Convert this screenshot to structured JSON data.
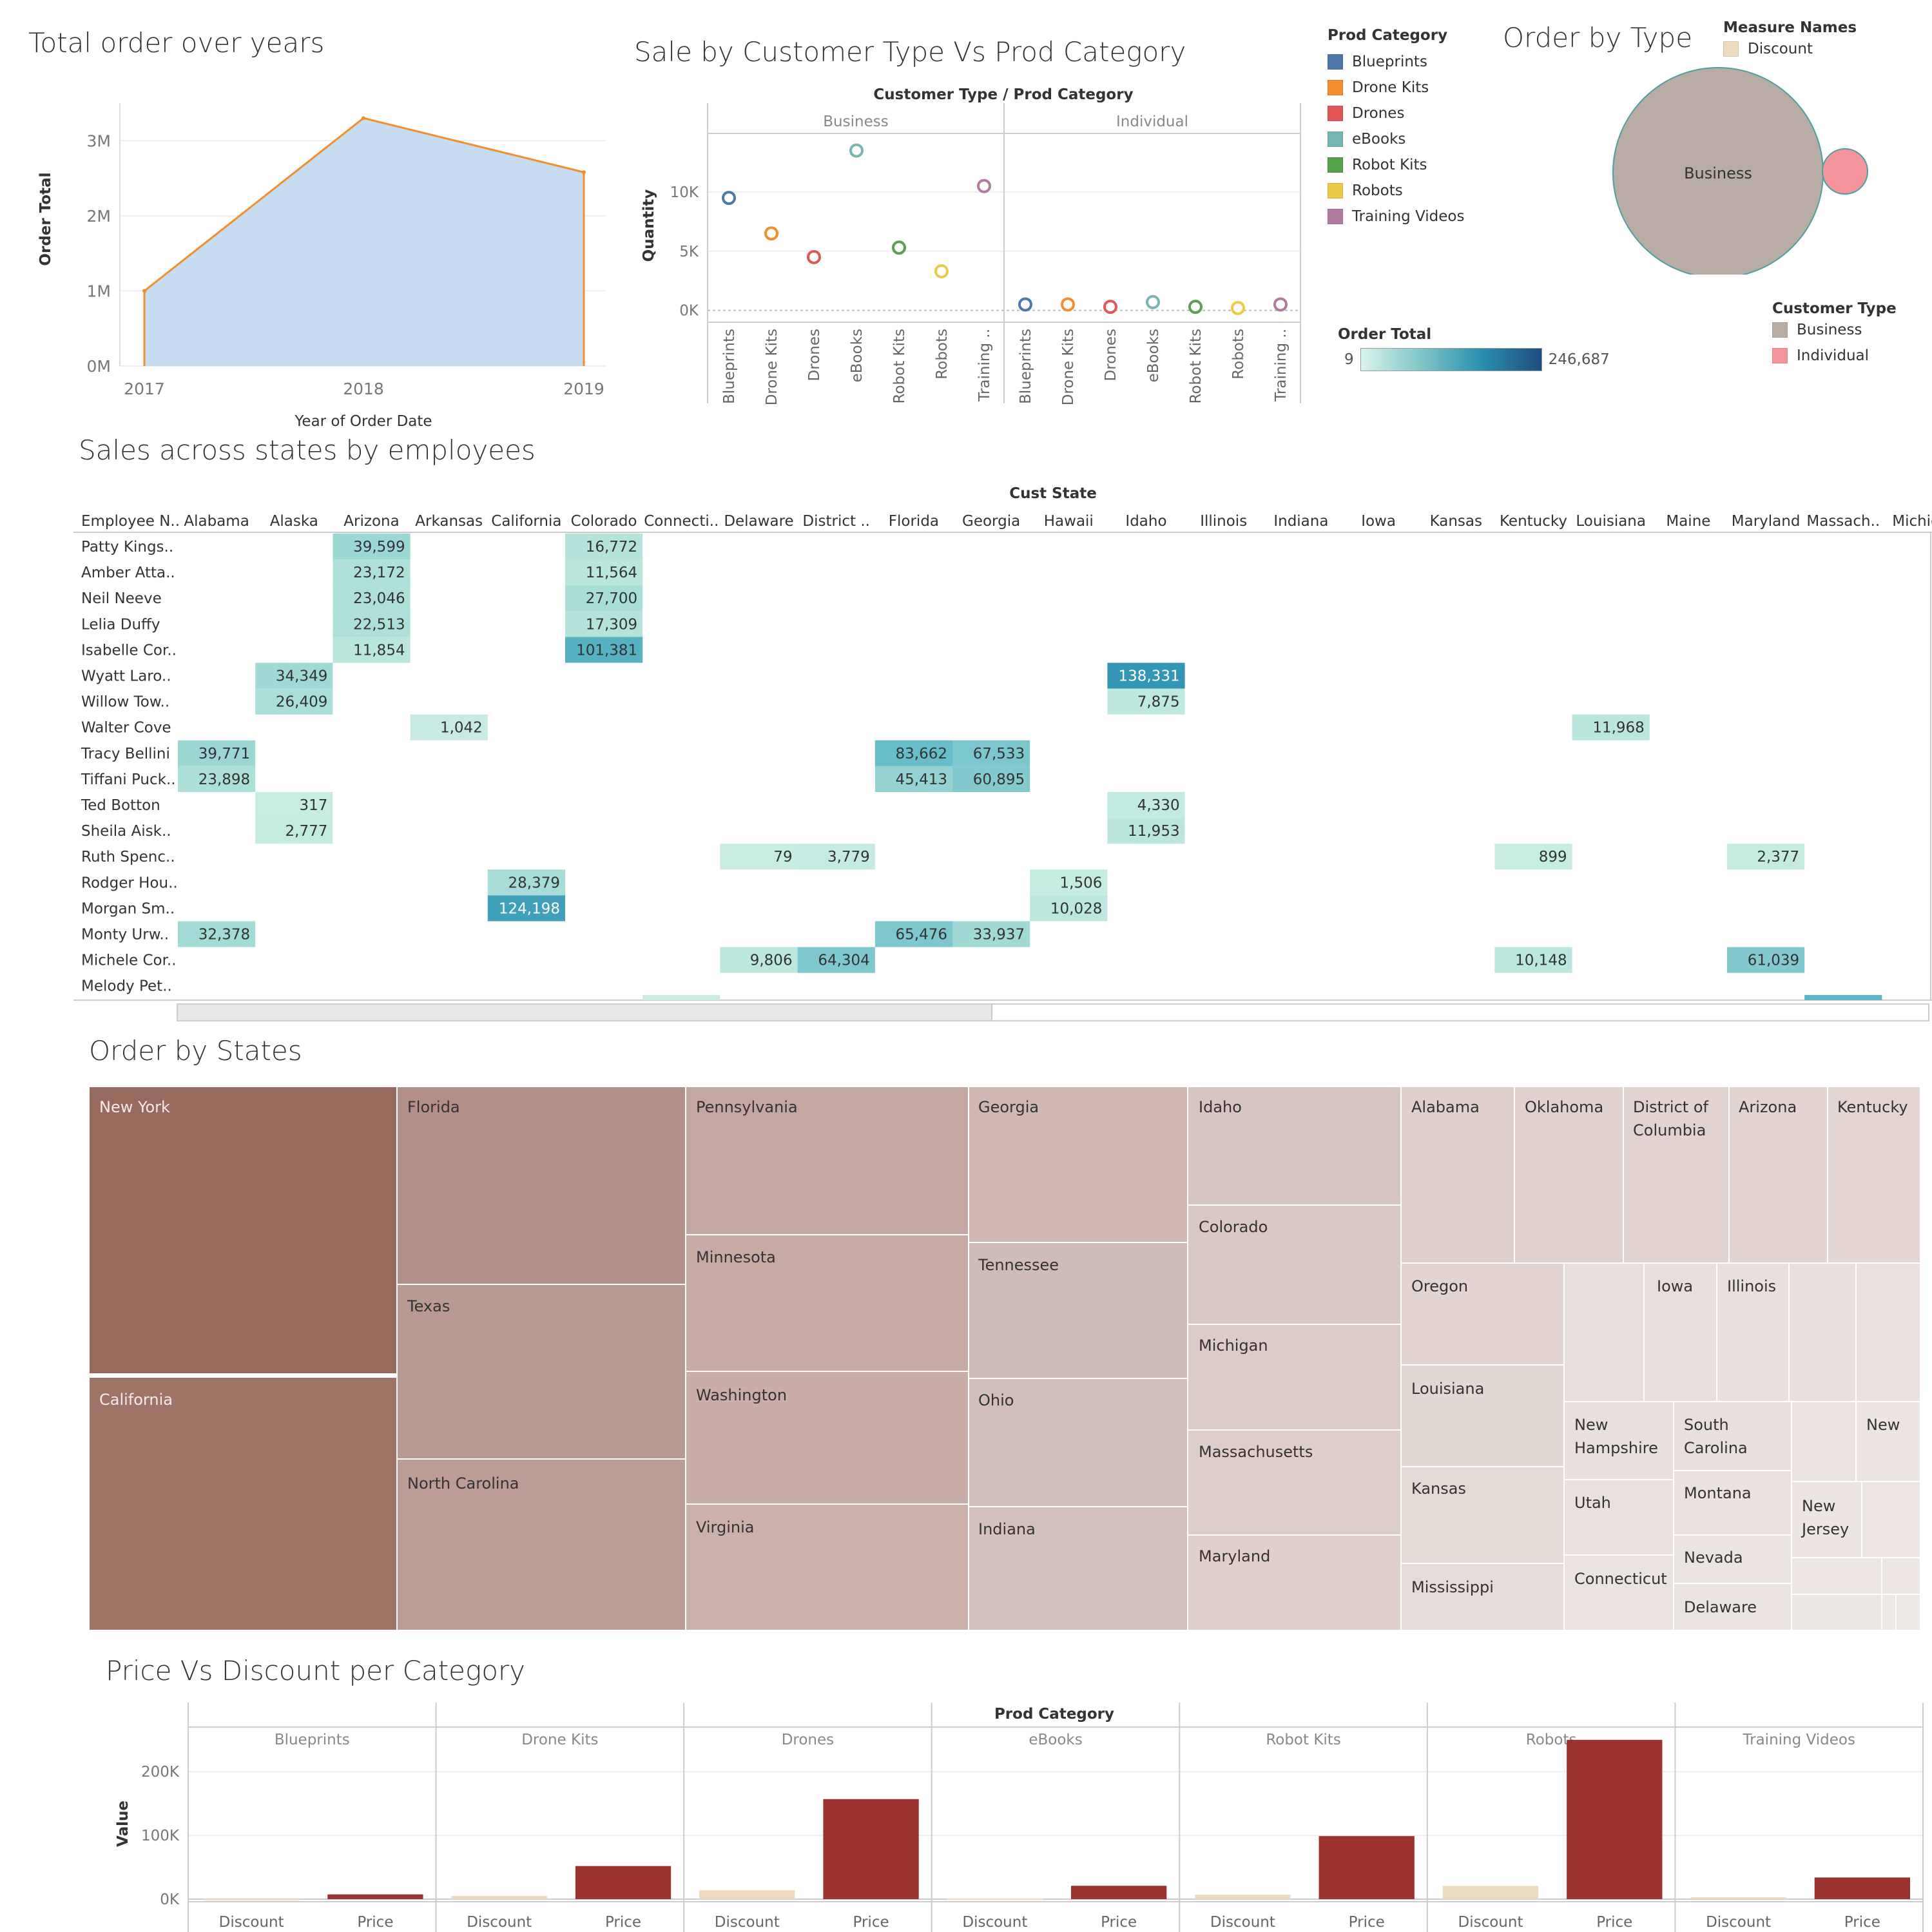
{
  "dashboard": {
    "titles": {
      "orders_over_years": "Total order over years",
      "sale_by_customer": "Sale by Customer Type Vs Prod Category",
      "order_by_type": "Order by Type",
      "sales_states_employees": "Sales across states by employees",
      "order_by_states": "Order by States",
      "price_vs_discount": "Price Vs Discount per Category"
    }
  },
  "legends": {
    "prod_category": {
      "title": "Prod Category",
      "items": [
        {
          "label": "Blueprints",
          "color": "#4e79a7"
        },
        {
          "label": "Drone Kits",
          "color": "#f28e2b"
        },
        {
          "label": "Drones",
          "color": "#e15759"
        },
        {
          "label": "eBooks",
          "color": "#76b7b2"
        },
        {
          "label": "Robot Kits",
          "color": "#59a14f"
        },
        {
          "label": "Robots",
          "color": "#edc948"
        },
        {
          "label": "Training Videos",
          "color": "#b07aa1"
        }
      ]
    },
    "measure_names": {
      "title": "Measure Names",
      "items": [
        {
          "label": "Discount",
          "color": "#ecdbbf"
        }
      ]
    },
    "order_total": {
      "title": "Order Total",
      "min": "9",
      "max": "246,687"
    },
    "customer_type": {
      "title": "Customer Type",
      "items": [
        {
          "label": "Business",
          "color": "#b8aca5"
        },
        {
          "label": "Individual",
          "color": "#f4959c"
        }
      ]
    }
  },
  "chart_data": [
    {
      "id": "orders_over_years",
      "type": "area",
      "x": [
        "2017",
        "2018",
        "2019"
      ],
      "values": [
        1000000,
        3300000,
        2580000
      ],
      "xlabel": "Year of Order Date",
      "ylabel": "Order Total",
      "yticks": [
        "0M",
        "1M",
        "2M",
        "3M"
      ],
      "ylim": [
        0,
        3500000
      ],
      "fill": "#c6dcf0",
      "stroke": "#f28e2b"
    },
    {
      "id": "sale_by_customer",
      "type": "scatter",
      "header": "Customer Type  /  Prod Category",
      "panels": [
        "Business",
        "Individual"
      ],
      "categories": [
        "Blueprints",
        "Drone Kits",
        "Drones",
        "eBooks",
        "Robot Kits",
        "Robots",
        "Training .."
      ],
      "category_labels": [
        "Blueprints",
        "Drone Kits",
        "Drones",
        "eBooks",
        "Robot Kits",
        "Robots",
        "Training .."
      ],
      "series": [
        {
          "name": "Business",
          "values": [
            9500,
            6500,
            4500,
            13500,
            5300,
            3300,
            10500
          ]
        },
        {
          "name": "Individual",
          "values": [
            500,
            500,
            300,
            700,
            300,
            200,
            500
          ]
        }
      ],
      "ylabel": "Quantity",
      "yticks": [
        "0K",
        "5K",
        "10K"
      ],
      "ylim": [
        -1000,
        15000
      ]
    },
    {
      "id": "order_by_type",
      "type": "bubble",
      "bubbles": [
        {
          "label": "Business",
          "color": "#b8aca5"
        },
        {
          "label": "Individual",
          "color": "#f4959c"
        }
      ]
    },
    {
      "id": "sales_states_employees",
      "type": "heatmap",
      "col_header": "Cust State",
      "row_header": "Employee N..",
      "columns": [
        "Alabama",
        "Alaska",
        "Arizona",
        "Arkansas",
        "California",
        "Colorado",
        "Connecti..",
        "Delaware",
        "District ..",
        "Florida",
        "Georgia",
        "Hawaii",
        "Idaho",
        "Illinois",
        "Indiana",
        "Iowa",
        "Kansas",
        "Kentucky",
        "Louisiana",
        "Maine",
        "Maryland",
        "Massach..",
        "Michiga"
      ],
      "rows": [
        "Patty Kings..",
        "Amber Atta..",
        "Neil Neeve",
        "Lelia Duffy",
        "Isabelle Cor..",
        "Wyatt Laro..",
        "Willow Tow..",
        "Walter Cove",
        "Tracy Bellini",
        "Tiffani Puck..",
        "Ted Botton",
        "Sheila Aisk..",
        "Ruth Spenc..",
        "Rodger Hou..",
        "Morgan Sm..",
        "Monty Urw..",
        "Michele Cor..",
        "Melody Pet.."
      ],
      "cells": [
        {
          "row": "Patty Kings..",
          "col": "Arizona",
          "value": 39599,
          "label": "39,599"
        },
        {
          "row": "Patty Kings..",
          "col": "Colorado",
          "value": 16772,
          "label": "16,772"
        },
        {
          "row": "Amber Atta..",
          "col": "Arizona",
          "value": 23172,
          "label": "23,172"
        },
        {
          "row": "Amber Atta..",
          "col": "Colorado",
          "value": 11564,
          "label": "11,564"
        },
        {
          "row": "Neil Neeve",
          "col": "Arizona",
          "value": 23046,
          "label": "23,046"
        },
        {
          "row": "Neil Neeve",
          "col": "Colorado",
          "value": 27700,
          "label": "27,700"
        },
        {
          "row": "Lelia Duffy",
          "col": "Arizona",
          "value": 22513,
          "label": "22,513"
        },
        {
          "row": "Lelia Duffy",
          "col": "Colorado",
          "value": 17309,
          "label": "17,309"
        },
        {
          "row": "Isabelle Cor..",
          "col": "Arizona",
          "value": 11854,
          "label": "11,854"
        },
        {
          "row": "Isabelle Cor..",
          "col": "Colorado",
          "value": 101381,
          "label": "101,381"
        },
        {
          "row": "Wyatt Laro..",
          "col": "Alaska",
          "value": 34349,
          "label": "34,349"
        },
        {
          "row": "Wyatt Laro..",
          "col": "Idaho",
          "value": 138331,
          "label": "138,331"
        },
        {
          "row": "Willow Tow..",
          "col": "Alaska",
          "value": 26409,
          "label": "26,409"
        },
        {
          "row": "Willow Tow..",
          "col": "Idaho",
          "value": 7875,
          "label": "7,875"
        },
        {
          "row": "Walter Cove",
          "col": "Arkansas",
          "value": 1042,
          "label": "1,042"
        },
        {
          "row": "Walter Cove",
          "col": "Louisiana",
          "value": 11968,
          "label": "11,968"
        },
        {
          "row": "Tracy Bellini",
          "col": "Alabama",
          "value": 39771,
          "label": "39,771"
        },
        {
          "row": "Tracy Bellini",
          "col": "Florida",
          "value": 83662,
          "label": "83,662"
        },
        {
          "row": "Tracy Bellini",
          "col": "Georgia",
          "value": 67533,
          "label": "67,533"
        },
        {
          "row": "Tiffani Puck..",
          "col": "Alabama",
          "value": 23898,
          "label": "23,898"
        },
        {
          "row": "Tiffani Puck..",
          "col": "Florida",
          "value": 45413,
          "label": "45,413"
        },
        {
          "row": "Tiffani Puck..",
          "col": "Georgia",
          "value": 60895,
          "label": "60,895"
        },
        {
          "row": "Ted Botton",
          "col": "Alaska",
          "value": 317,
          "label": "317"
        },
        {
          "row": "Ted Botton",
          "col": "Idaho",
          "value": 4330,
          "label": "4,330"
        },
        {
          "row": "Sheila Aisk..",
          "col": "Alaska",
          "value": 2777,
          "label": "2,777"
        },
        {
          "row": "Sheila Aisk..",
          "col": "Idaho",
          "value": 11953,
          "label": "11,953"
        },
        {
          "row": "Ruth Spenc..",
          "col": "Delaware",
          "value": 79,
          "label": "79"
        },
        {
          "row": "Ruth Spenc..",
          "col": "District ..",
          "value": 3779,
          "label": "3,779"
        },
        {
          "row": "Ruth Spenc..",
          "col": "Kentucky",
          "value": 899,
          "label": "899"
        },
        {
          "row": "Ruth Spenc..",
          "col": "Maryland",
          "value": 2377,
          "label": "2,377"
        },
        {
          "row": "Rodger Hou..",
          "col": "California",
          "value": 28379,
          "label": "28,379"
        },
        {
          "row": "Rodger Hou..",
          "col": "Hawaii",
          "value": 1506,
          "label": "1,506"
        },
        {
          "row": "Morgan Sm..",
          "col": "California",
          "value": 124198,
          "label": "124,198"
        },
        {
          "row": "Morgan Sm..",
          "col": "Hawaii",
          "value": 10028,
          "label": "10,028"
        },
        {
          "row": "Monty Urw..",
          "col": "Alabama",
          "value": 32378,
          "label": "32,378"
        },
        {
          "row": "Monty Urw..",
          "col": "Florida",
          "value": 65476,
          "label": "65,476"
        },
        {
          "row": "Monty Urw..",
          "col": "Georgia",
          "value": 33937,
          "label": "33,937"
        },
        {
          "row": "Michele Cor..",
          "col": "Delaware",
          "value": 9806,
          "label": "9,806"
        },
        {
          "row": "Michele Cor..",
          "col": "District ..",
          "value": 64304,
          "label": "64,304"
        },
        {
          "row": "Michele Cor..",
          "col": "Kentucky",
          "value": 10148,
          "label": "10,148"
        },
        {
          "row": "Michele Cor..",
          "col": "Maryland",
          "value": 61039,
          "label": "61,039"
        }
      ],
      "scale_min": 9,
      "scale_max": 246687
    },
    {
      "id": "order_by_states",
      "type": "treemap",
      "labels": [
        "New York",
        "California",
        "Florida",
        "Texas",
        "North Carolina",
        "Pennsylvania",
        "Minnesota",
        "Washington",
        "Virginia",
        "Georgia",
        "Tennessee",
        "Ohio",
        "Indiana",
        "Idaho",
        "Colorado",
        "Michigan",
        "Massachusetts",
        "Maryland",
        "Alabama",
        "Oklahoma",
        "District of Columbia",
        "Arizona",
        "Kentucky",
        "Oregon",
        "Louisiana",
        "Kansas",
        "Mississippi",
        "Iowa",
        "Illinois",
        "New Hampshire",
        "South Carolina",
        "Utah",
        "Montana",
        "Connecticut",
        "Nevada",
        "Delaware",
        "New Jersey",
        "New"
      ]
    },
    {
      "id": "price_vs_discount",
      "type": "bar",
      "header": "Prod Category",
      "panels": [
        "Blueprints",
        "Drone Kits",
        "Drones",
        "eBooks",
        "Robot Kits",
        "Robots",
        "Training Videos"
      ],
      "measures": [
        "Discount",
        "Price"
      ],
      "series": [
        {
          "name": "Discount",
          "values": [
            500,
            5000,
            14000,
            1000,
            7000,
            21000,
            3000
          ]
        },
        {
          "name": "Price",
          "values": [
            7500,
            52000,
            157000,
            21000,
            99000,
            250000,
            34000
          ]
        }
      ],
      "ylabel": "Value",
      "yticks": [
        "0K",
        "100K",
        "200K"
      ],
      "ylim": [
        -5000,
        270000
      ],
      "colors": {
        "Discount": "#ecdbbf",
        "Price": "#9c3230"
      }
    }
  ]
}
